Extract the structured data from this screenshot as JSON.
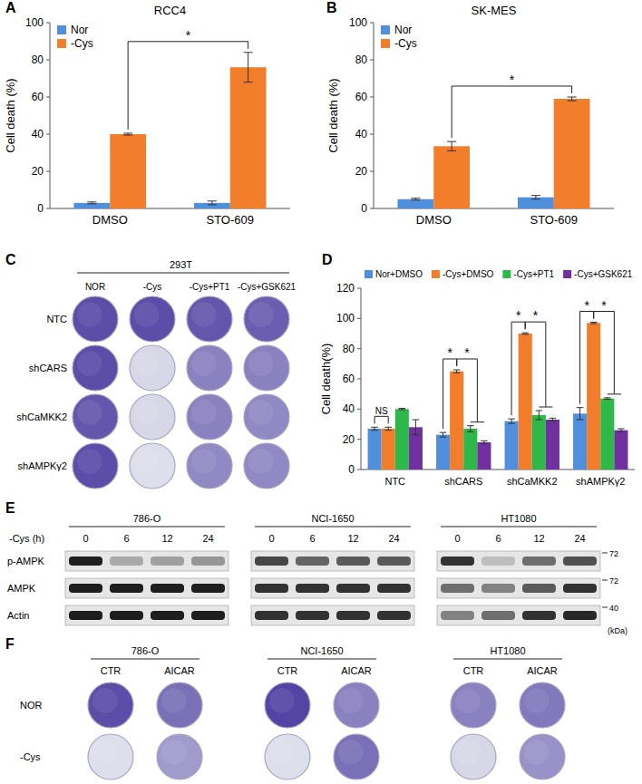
{
  "chart_data": [
    {
      "panel": "A",
      "type": "bar",
      "title": "RCC4",
      "y_label": "Cell death (%)",
      "categories": [
        "DMSO",
        "STO-609"
      ],
      "series": [
        {
          "name": "Nor",
          "color": "#4f8fdb",
          "values": [
            3,
            3
          ],
          "errors": [
            0.5,
            1
          ]
        },
        {
          "name": "-Cys",
          "color": "#f27d2a",
          "values": [
            40,
            76
          ],
          "errors": [
            0.5,
            8
          ]
        }
      ],
      "ylim": [
        0,
        100
      ],
      "yticks": [
        0,
        20,
        40,
        60,
        80,
        100
      ],
      "legend": "top-left",
      "annotations": [
        {
          "text": "*",
          "series": 1,
          "categories": [
            0,
            1
          ]
        }
      ]
    },
    {
      "panel": "B",
      "type": "bar",
      "title": "SK-MES",
      "y_label": "Cell death (%)",
      "categories": [
        "DMSO",
        "STO-609"
      ],
      "series": [
        {
          "name": "Nor",
          "color": "#4f8fdb",
          "values": [
            5,
            6
          ],
          "errors": [
            0.5,
            1
          ]
        },
        {
          "name": "-Cys",
          "color": "#f27d2a",
          "values": [
            33.5,
            59
          ],
          "errors": [
            2.5,
            1
          ]
        }
      ],
      "ylim": [
        0,
        100
      ],
      "yticks": [
        0,
        20,
        40,
        60,
        80,
        100
      ],
      "legend": "top-left",
      "annotations": [
        {
          "text": "*",
          "series": 1,
          "categories": [
            0,
            1
          ]
        }
      ]
    },
    {
      "panel": "D",
      "type": "bar",
      "y_label": "Cell death(%)",
      "categories": [
        "NTC",
        "shCARS",
        "shCaMKK2",
        "shAMPKγ2"
      ],
      "series": [
        {
          "name": "Nor+DMSO",
          "color": "#4f8fdb",
          "values": [
            27,
            23,
            32,
            37
          ],
          "errors": [
            1,
            1.5,
            1.5,
            4
          ]
        },
        {
          "name": "-Cys+DMSO",
          "color": "#f27d2a",
          "values": [
            27,
            65,
            90,
            97
          ],
          "errors": [
            1,
            1,
            0.5,
            0.5
          ]
        },
        {
          "name": "-Cys+PT1",
          "color": "#2fb84a",
          "values": [
            40,
            27,
            36,
            47
          ],
          "errors": [
            0.5,
            2,
            3,
            0.5
          ]
        },
        {
          "name": "-Cys+GSK621",
          "color": "#7030a0",
          "values": [
            28,
            18,
            33,
            26
          ],
          "errors": [
            5,
            1,
            1,
            1
          ]
        }
      ],
      "ylim": [
        0,
        120
      ],
      "yticks": [
        0,
        20,
        40,
        60,
        80,
        100,
        120
      ],
      "legend": "top",
      "annotations": [
        {
          "text": "NS",
          "category": 0,
          "series": [
            0,
            1
          ]
        },
        {
          "text": "*",
          "category": 1,
          "series": [
            0,
            1
          ]
        },
        {
          "text": "*",
          "category": 1,
          "series": [
            1,
            2,
            3
          ]
        },
        {
          "text": "*",
          "category": 2,
          "series": [
            0,
            1
          ]
        },
        {
          "text": "*",
          "category": 2,
          "series": [
            1,
            2,
            3
          ]
        },
        {
          "text": "*",
          "category": 3,
          "series": [
            0,
            1
          ]
        },
        {
          "text": "*",
          "category": 3,
          "series": [
            1,
            2,
            3
          ]
        }
      ]
    }
  ],
  "panel_c": {
    "panel": "C",
    "cell_line": "293T",
    "columns": [
      "NOR",
      "-Cys",
      "-Cys+PT1",
      "-Cys+GSK621"
    ],
    "rows": [
      "NTC",
      "shCARS",
      "shCaMKK2",
      "shAMPKγ2"
    ],
    "staining": [
      [
        0.9,
        0.9,
        0.85,
        0.8
      ],
      [
        0.9,
        0.1,
        0.6,
        0.6
      ],
      [
        0.85,
        0.1,
        0.6,
        0.55
      ],
      [
        0.9,
        0.05,
        0.55,
        0.55
      ]
    ]
  },
  "panel_e": {
    "panel": "E",
    "treatment_label": "-Cys (h)",
    "time_points": [
      0,
      6,
      12,
      24
    ],
    "rows": [
      "p-AMPK",
      "AMPK",
      "Actin"
    ],
    "markers": [
      72,
      72,
      40
    ],
    "marker_unit": "(kDa)",
    "blots": [
      {
        "cell_line": "786-O",
        "bands": [
          [
            1,
            0.3,
            0.35,
            0.4
          ],
          [
            1,
            1,
            1,
            1
          ],
          [
            1,
            1,
            1,
            1
          ]
        ]
      },
      {
        "cell_line": "NCI-1650",
        "bands": [
          [
            0.8,
            0.65,
            0.7,
            0.7
          ],
          [
            0.9,
            0.9,
            0.9,
            0.9
          ],
          [
            0.9,
            0.9,
            0.9,
            0.9
          ]
        ]
      },
      {
        "cell_line": "HT1080",
        "bands": [
          [
            0.9,
            0.2,
            0.6,
            0.75
          ],
          [
            0.6,
            0.5,
            0.7,
            0.9
          ],
          [
            0.5,
            0.6,
            0.9,
            0.95
          ]
        ]
      }
    ]
  },
  "panel_f": {
    "panel": "F",
    "columns": [
      "CTR",
      "AICAR"
    ],
    "rows": [
      "NOR",
      "-Cys"
    ],
    "blocks": [
      {
        "cell_line": "786-O",
        "staining": [
          [
            0.9,
            0.7
          ],
          [
            0.05,
            0.45
          ]
        ]
      },
      {
        "cell_line": "NCI-1650",
        "staining": [
          [
            0.95,
            0.6
          ],
          [
            0.05,
            0.7
          ]
        ]
      },
      {
        "cell_line": "HT1080",
        "staining": [
          [
            0.6,
            0.65
          ],
          [
            0.1,
            0.5
          ]
        ]
      }
    ]
  }
}
